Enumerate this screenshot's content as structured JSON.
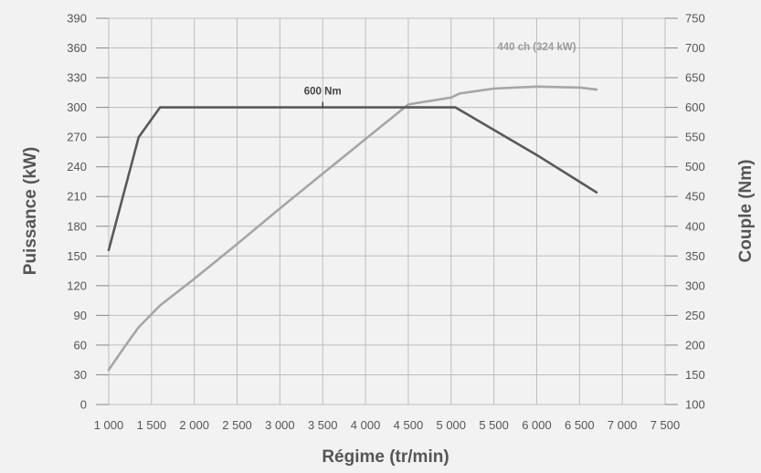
{
  "chart_data": {
    "type": "line",
    "xlabel": "Régime (tr/min)",
    "ylabel_left": "Puissance (kW)",
    "ylabel_right": "Couple (Nm)",
    "x_ticks": [
      1000,
      1500,
      2000,
      2500,
      3000,
      3500,
      4000,
      4500,
      5000,
      5500,
      6000,
      6500,
      7000,
      7500
    ],
    "x_tick_labels": [
      "1 000",
      "1 500",
      "2 000",
      "2 500",
      "3 000",
      "3 500",
      "4 000",
      "4 500",
      "5 000",
      "5 500",
      "6 000",
      "6 500",
      "7 000",
      "7 500"
    ],
    "xlim": [
      1000,
      7500
    ],
    "y_left_ticks": [
      0,
      30,
      60,
      90,
      120,
      150,
      180,
      210,
      240,
      270,
      300,
      330,
      360,
      390
    ],
    "ylim_left": [
      0,
      390
    ],
    "y_right_ticks": [
      100,
      150,
      200,
      250,
      300,
      350,
      400,
      450,
      500,
      550,
      600,
      650,
      700,
      750
    ],
    "ylim_right": [
      100,
      750
    ],
    "grid": true,
    "colors": {
      "power": "#a6a6a6",
      "torque": "#595959",
      "grid": "#bdbdbd",
      "text": "#555555"
    },
    "series": [
      {
        "name": "Puissance",
        "axis": "left",
        "x": [
          1000,
          1200,
          1350,
          1600,
          2000,
          2500,
          3000,
          3500,
          4000,
          4500,
          5000,
          5100,
          5500,
          6000,
          6500,
          6700
        ],
        "y": [
          35,
          60,
          78,
          100,
          127,
          162,
          198,
          233,
          268,
          303,
          310,
          314,
          319,
          321,
          320,
          318
        ]
      },
      {
        "name": "Couple",
        "axis": "right",
        "x": [
          1000,
          1350,
          1600,
          2000,
          3000,
          4000,
          5000,
          5050,
          6000,
          6700
        ],
        "y": [
          360,
          550,
          600,
          600,
          600,
          600,
          600,
          600,
          520,
          457
        ]
      }
    ],
    "annotations": [
      {
        "text": "600 Nm",
        "x": 3500,
        "y": 300,
        "color": "#444444"
      },
      {
        "text": "440 ch (324 kW)",
        "x": 6000,
        "y": 345,
        "color": "#9a9a9a"
      }
    ]
  }
}
